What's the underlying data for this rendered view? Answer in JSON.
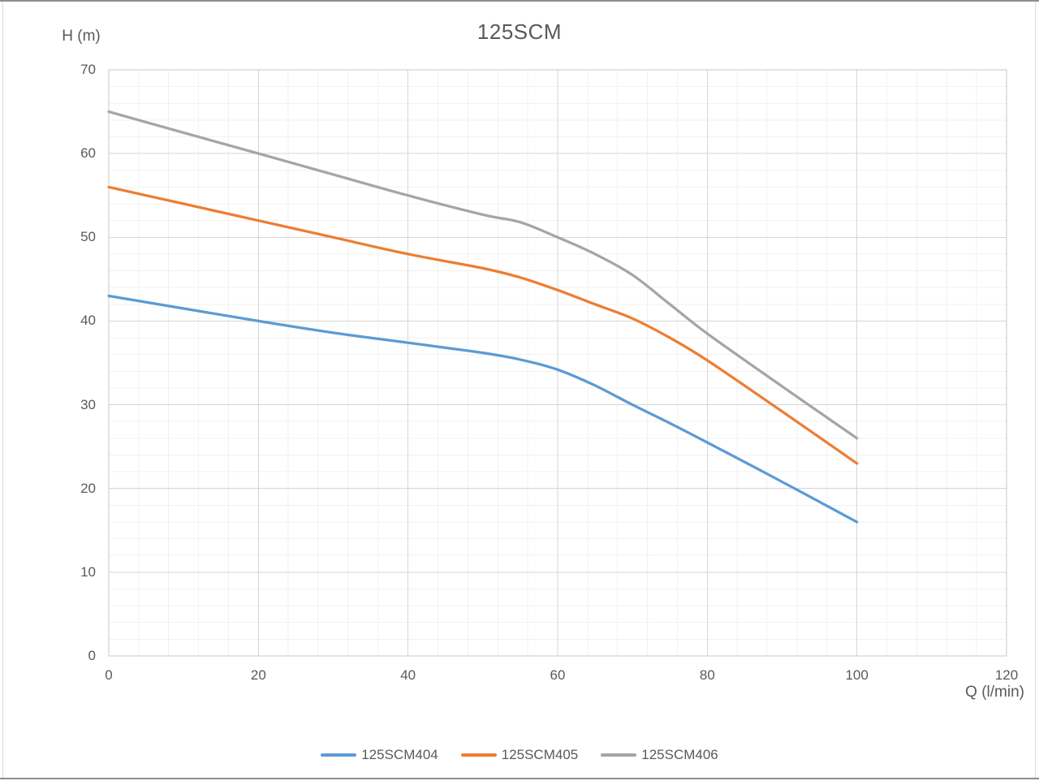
{
  "chart_data": {
    "type": "line",
    "title": "125SCM",
    "xlabel": "Q (l/min)",
    "ylabel": "H (m)",
    "xlim": [
      0,
      120
    ],
    "ylim": [
      0,
      70
    ],
    "x_ticks": [
      0,
      20,
      40,
      60,
      80,
      100,
      120
    ],
    "y_ticks": [
      0,
      10,
      20,
      30,
      40,
      50,
      60,
      70
    ],
    "x_minor_step": 4,
    "y_minor_step": 2,
    "grid": {
      "major_on": true,
      "minor_on": true,
      "major_color": "#d6d6d6",
      "minor_color": "#f1f1f1",
      "border_color": "#c9c9c9"
    },
    "text_color": "#595959",
    "x": [
      0,
      10,
      20,
      30,
      40,
      50,
      55,
      60,
      65,
      70,
      75,
      80,
      90,
      100
    ],
    "series": [
      {
        "name": "125SCM404",
        "color": "#5B9BD5",
        "values": [
          43,
          41.5,
          40,
          38.6,
          37.4,
          36.2,
          35.4,
          34.2,
          32.3,
          30,
          27.8,
          25.5,
          20.8,
          16
        ]
      },
      {
        "name": "125SCM405",
        "color": "#ED7D31",
        "values": [
          56,
          54,
          52,
          50,
          48,
          46.3,
          45.2,
          43.7,
          42,
          40.3,
          38,
          35.3,
          29.2,
          23
        ]
      },
      {
        "name": "125SCM406",
        "color": "#A5A5A5",
        "values": [
          65,
          62.5,
          60,
          57.5,
          55,
          52.7,
          51.8,
          50,
          48,
          45.5,
          42,
          38.5,
          32.2,
          26
        ]
      }
    ],
    "legend": {
      "position": "bottom",
      "entries": [
        "125SCM404",
        "125SCM405",
        "125SCM406"
      ]
    }
  }
}
